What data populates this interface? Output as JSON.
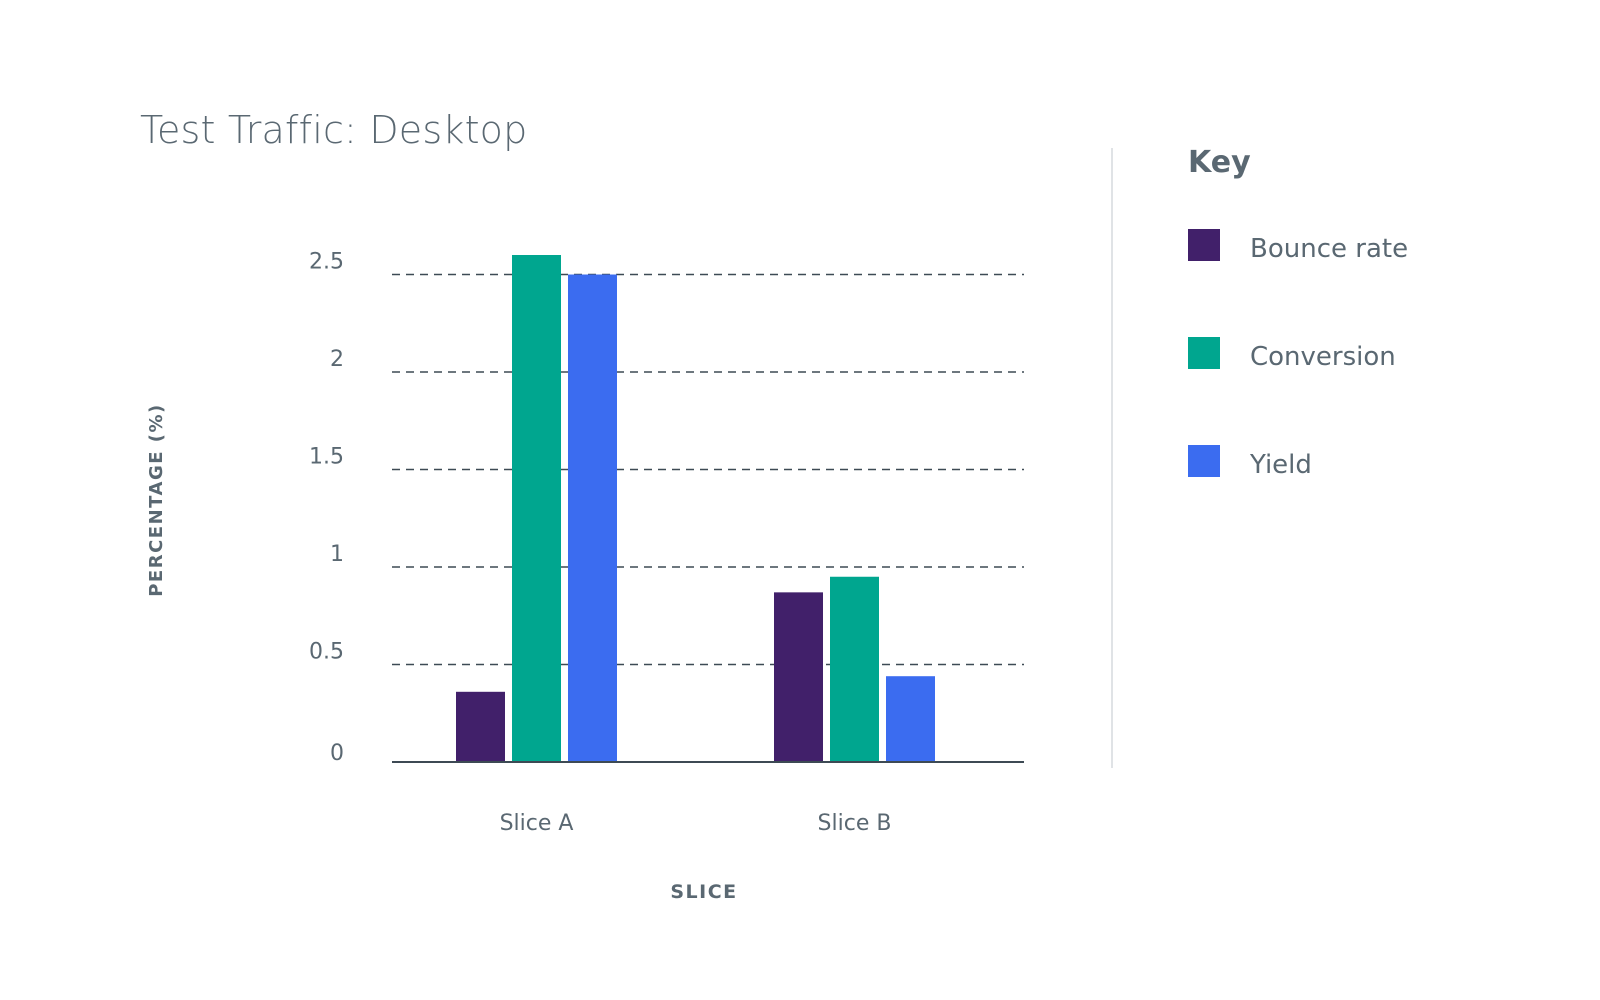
{
  "chart_data": {
    "type": "bar",
    "title": "Test Traffic: Desktop",
    "xlabel": "SLICE",
    "ylabel": "PERCENTAGE (%)",
    "categories": [
      "Slice A",
      "Slice B"
    ],
    "series": [
      {
        "name": "Bounce rate",
        "color": "#41206a",
        "values": [
          0.36,
          0.87
        ]
      },
      {
        "name": "Conversion",
        "color": "#00a68f",
        "values": [
          2.6,
          0.95
        ]
      },
      {
        "name": "Yield",
        "color": "#3b6cf0",
        "values": [
          2.5,
          0.44
        ]
      }
    ],
    "yticks": [
      0,
      0.5,
      1,
      1.5,
      2,
      2.5
    ],
    "ytick_labels": [
      "0",
      "0.5",
      "1",
      "1.5",
      "2",
      "2.5"
    ],
    "ylim": [
      0,
      2.5
    ],
    "grid": "dashed horizontal",
    "legend_title": "Key",
    "legend_position": "right"
  }
}
